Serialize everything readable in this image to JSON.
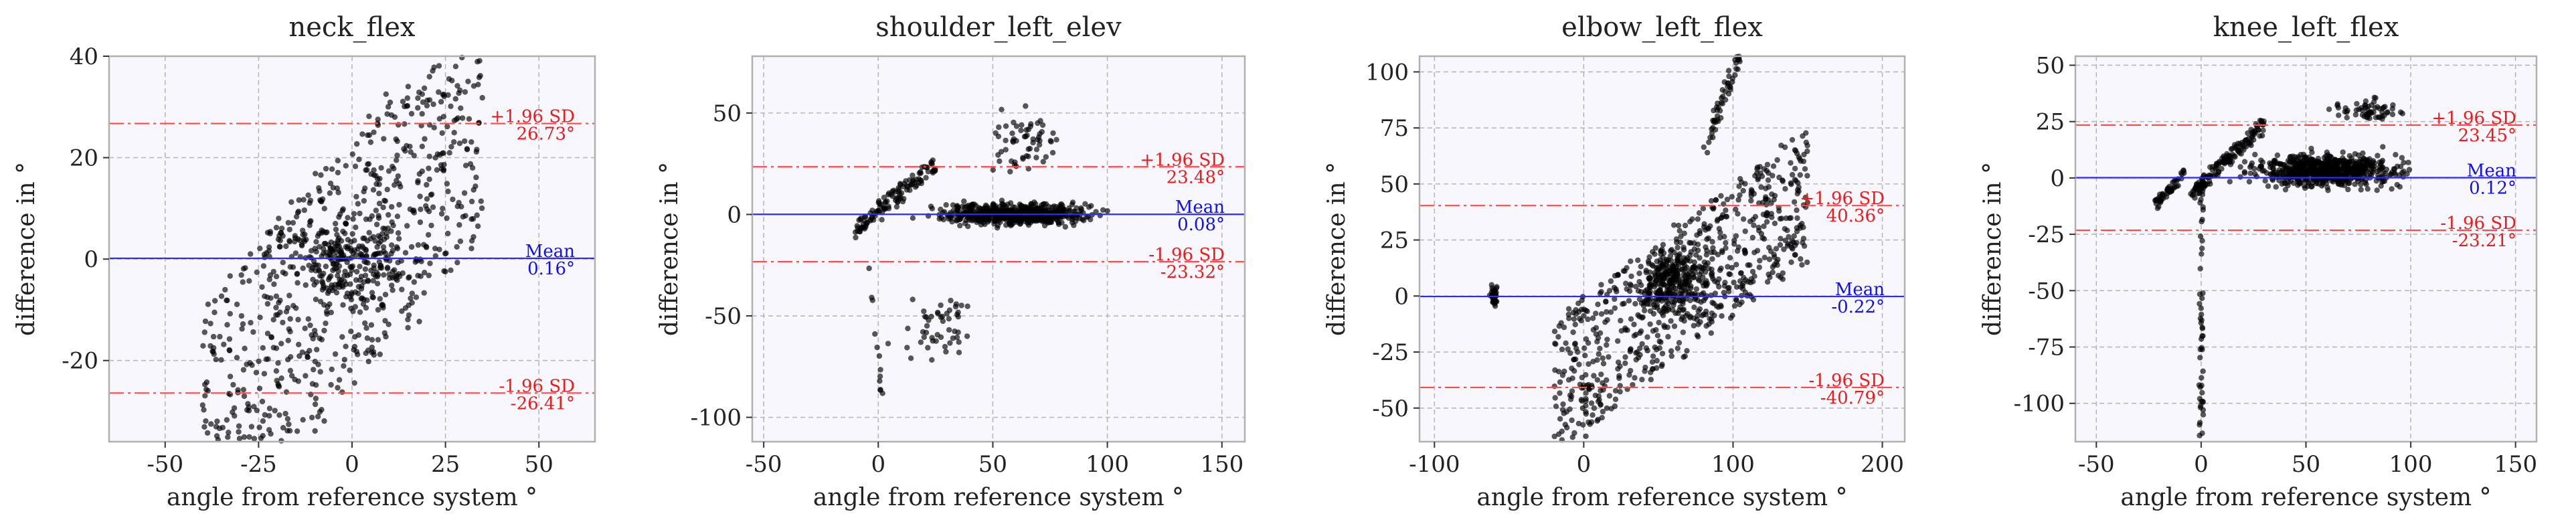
{
  "chart_data": [
    {
      "type": "scatter",
      "title": "neck_flex",
      "xlabel": "angle from reference system °",
      "ylabel": "difference in °",
      "xlim": [
        -65,
        65
      ],
      "ylim": [
        -36,
        40
      ],
      "xticks": [
        -50,
        -25,
        0,
        25,
        50
      ],
      "xtick_labels": [
        "-50",
        "-25",
        "0",
        "25",
        "50"
      ],
      "yticks": [
        -20,
        0,
        20,
        40
      ],
      "ytick_labels": [
        "-20",
        "0",
        "20",
        "40"
      ],
      "mean": {
        "value": 0.16,
        "label": "Mean",
        "value_label": "0.16°"
      },
      "upper": {
        "value": 26.73,
        "label": "+1.96 SD",
        "value_label": "26.73°"
      },
      "lower": {
        "value": -26.41,
        "label": "-1.96 SD",
        "value_label": "-26.41°"
      },
      "clusters": [
        {
          "kind": "line",
          "x0": -40,
          "x1": 35,
          "slope": 0.85,
          "offset": 0,
          "spread": 50,
          "noise": 2,
          "n": 700
        },
        {
          "kind": "cloud",
          "cx": 0,
          "cy": 0,
          "rx": 30,
          "ry": 15,
          "n": 250
        }
      ]
    },
    {
      "type": "scatter",
      "title": "shoulder_left_elev",
      "xlabel": "angle from reference system °",
      "ylabel": "difference in °",
      "xlim": [
        -55,
        160
      ],
      "ylim": [
        -112,
        78
      ],
      "xticks": [
        -50,
        0,
        50,
        100,
        150
      ],
      "xtick_labels": [
        "-50",
        "0",
        "50",
        "100",
        "150"
      ],
      "yticks": [
        -100,
        -50,
        0,
        50
      ],
      "ytick_labels": [
        "-100",
        "-50",
        "0",
        "50"
      ],
      "mean": {
        "value": 0.08,
        "label": "Mean",
        "value_label": "0.08°"
      },
      "upper": {
        "value": 23.48,
        "label": "+1.96 SD",
        "value_label": "23.48°"
      },
      "lower": {
        "value": -23.32,
        "label": "-1.96 SD",
        "value_label": "-23.32°"
      },
      "clusters": [
        {
          "kind": "cloud",
          "cx": 60,
          "cy": 0,
          "rx": 55,
          "ry": 9,
          "n": 600
        },
        {
          "kind": "line",
          "x0": -10,
          "x1": 25,
          "slope": 0.9,
          "offset": 2,
          "spread": 8,
          "noise": 2,
          "n": 120
        },
        {
          "kind": "cloud",
          "cx": 65,
          "cy": 35,
          "rx": 25,
          "ry": 25,
          "n": 60
        },
        {
          "kind": "cloud",
          "cx": 25,
          "cy": -55,
          "rx": 30,
          "ry": 25,
          "n": 50
        },
        {
          "kind": "line",
          "x0": -4,
          "x1": 2,
          "slope": -10,
          "offset": -70,
          "spread": 5,
          "noise": 8,
          "n": 12
        }
      ]
    },
    {
      "type": "scatter",
      "title": "elbow_left_flex",
      "xlabel": "angle from reference system °",
      "ylabel": "difference in °",
      "xlim": [
        -110,
        215
      ],
      "ylim": [
        -65,
        107
      ],
      "xticks": [
        -100,
        0,
        100,
        200
      ],
      "xtick_labels": [
        "-100",
        "0",
        "100",
        "200"
      ],
      "yticks": [
        -50,
        -25,
        0,
        25,
        50,
        75,
        100
      ],
      "ytick_labels": [
        "-50",
        "-25",
        "0",
        "25",
        "50",
        "75",
        "100"
      ],
      "mean": {
        "value": -0.22,
        "label": "Mean",
        "value_label": "-0.22°"
      },
      "upper": {
        "value": 40.36,
        "label": "+1.96 SD",
        "value_label": "40.36°"
      },
      "lower": {
        "value": -40.79,
        "label": "-1.96 SD",
        "value_label": "-40.79°"
      },
      "clusters": [
        {
          "kind": "line",
          "x0": -20,
          "x1": 150,
          "slope": 0.5,
          "offset": -30,
          "spread": 60,
          "noise": 3,
          "n": 700
        },
        {
          "kind": "cloud",
          "cx": 60,
          "cy": 5,
          "rx": 45,
          "ry": 25,
          "n": 250
        },
        {
          "kind": "line",
          "x0": 80,
          "x1": 115,
          "slope": 1.8,
          "offset": -80,
          "spread": 10,
          "noise": 3,
          "n": 80
        },
        {
          "kind": "cloud",
          "cx": -60,
          "cy": 0,
          "rx": 4,
          "ry": 8,
          "n": 40
        }
      ]
    },
    {
      "type": "scatter",
      "title": "knee_left_flex",
      "xlabel": "angle from reference system °",
      "ylabel": "difference in °",
      "xlim": [
        -60,
        160
      ],
      "ylim": [
        -117,
        54
      ],
      "xticks": [
        -50,
        0,
        50,
        100,
        150
      ],
      "xtick_labels": [
        "-50",
        "0",
        "50",
        "100",
        "150"
      ],
      "yticks": [
        -100,
        -75,
        -50,
        -25,
        0,
        25,
        50
      ],
      "ytick_labels": [
        "-100",
        "-75",
        "-50",
        "-25",
        "0",
        "25",
        "50"
      ],
      "mean": {
        "value": 0.12,
        "label": "Mean",
        "value_label": "0.12°"
      },
      "upper": {
        "value": 23.45,
        "label": "+1.96 SD",
        "value_label": "23.45°"
      },
      "lower": {
        "value": -23.21,
        "label": "-1.96 SD",
        "value_label": "-23.21°"
      },
      "clusters": [
        {
          "kind": "cloud",
          "cx": 60,
          "cy": 3,
          "rx": 55,
          "ry": 12,
          "n": 700
        },
        {
          "kind": "line",
          "x0": -5,
          "x1": 30,
          "slope": 0.9,
          "offset": -3,
          "spread": 6,
          "noise": 2,
          "n": 150
        },
        {
          "kind": "line",
          "x0": -22,
          "x1": -8,
          "slope": 1,
          "offset": 10,
          "spread": 4,
          "noise": 1.5,
          "n": 50
        },
        {
          "kind": "line",
          "x0": -1,
          "x1": 1,
          "slope": 0,
          "offset": -60,
          "spread": 110,
          "noise": 0,
          "n": 50
        },
        {
          "kind": "cloud",
          "cx": 80,
          "cy": 30,
          "rx": 30,
          "ry": 8,
          "n": 60
        }
      ]
    }
  ]
}
